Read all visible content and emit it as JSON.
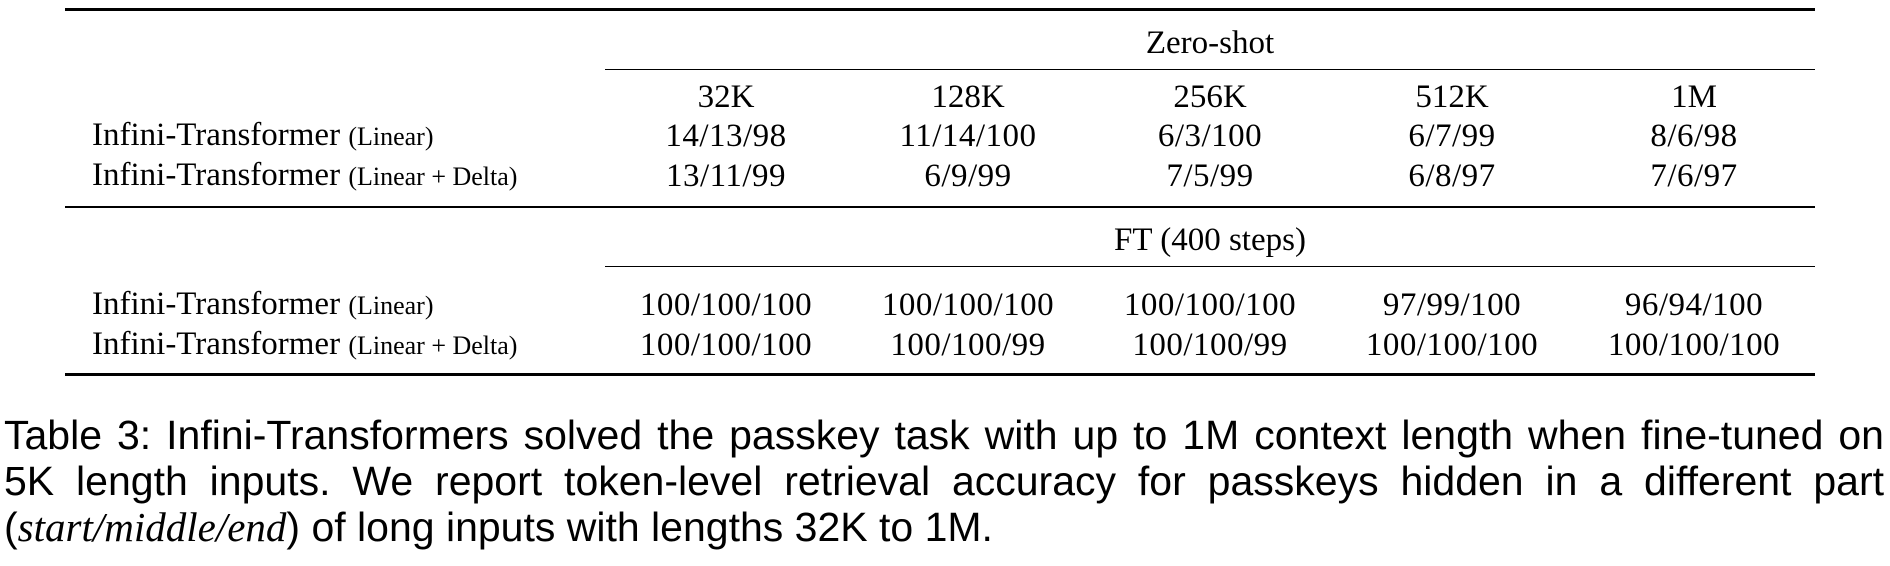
{
  "table": {
    "zero_shot_header": "Zero-shot",
    "ft_header": "FT (400 steps)",
    "columns": [
      "32K",
      "128K",
      "256K",
      "512K",
      "1M"
    ],
    "zero_shot_rows": [
      {
        "model": "Infini-Transformer",
        "variant": "(Linear)",
        "values": [
          "14/13/98",
          "11/14/100",
          "6/3/100",
          "6/7/99",
          "8/6/98"
        ]
      },
      {
        "model": "Infini-Transformer",
        "variant": "(Linear + Delta)",
        "values": [
          "13/11/99",
          "6/9/99",
          "7/5/99",
          "6/8/97",
          "7/6/97"
        ]
      }
    ],
    "ft_rows": [
      {
        "model": "Infini-Transformer",
        "variant": "(Linear)",
        "values": [
          "100/100/100",
          "100/100/100",
          "100/100/100",
          "97/99/100",
          "96/94/100"
        ]
      },
      {
        "model": "Infini-Transformer",
        "variant": "(Linear + Delta)",
        "values": [
          "100/100/100",
          "100/100/99",
          "100/100/99",
          "100/100/100",
          "100/100/100"
        ]
      }
    ]
  },
  "caption": {
    "part1": "Table 3: Infini-Transformers solved the passkey task with up to 1M context length when fine-tuned on 5K length inputs. We report token-level retrieval accuracy for passkeys hidden in a different part (",
    "italic": "start/middle/end",
    "part2": ") of long inputs with lengths 32K to 1M."
  }
}
